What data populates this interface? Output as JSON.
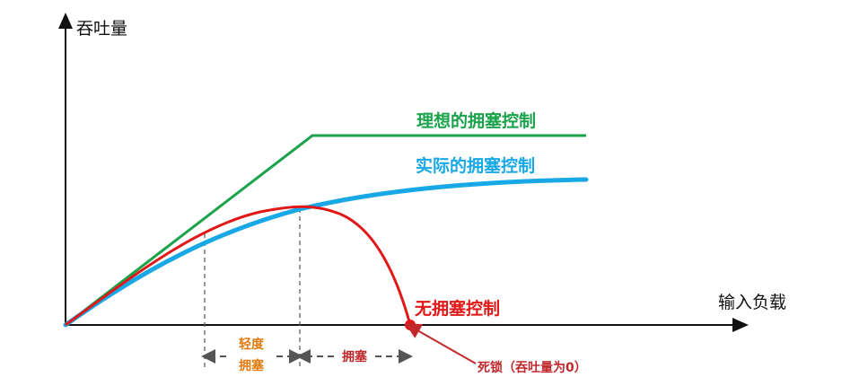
{
  "labels": {
    "y_axis": "吞吐量",
    "x_axis": "输入负载",
    "ideal": "理想的拥塞控制",
    "actual": "实际的拥塞控制",
    "none": "无拥塞控制",
    "light_line1": "轻度",
    "light_line2": "拥塞",
    "congestion": "拥塞",
    "deadlock": "死锁（吞吐量为0）"
  },
  "colors": {
    "axis": "#111111",
    "ideal": "#1aa34a",
    "actual": "#18a8e6",
    "none": "#e01818",
    "light_region": "#e07b10",
    "congestion_region": "#c0282c",
    "deadlock": "#c0282c",
    "dashed": "#555555"
  }
}
